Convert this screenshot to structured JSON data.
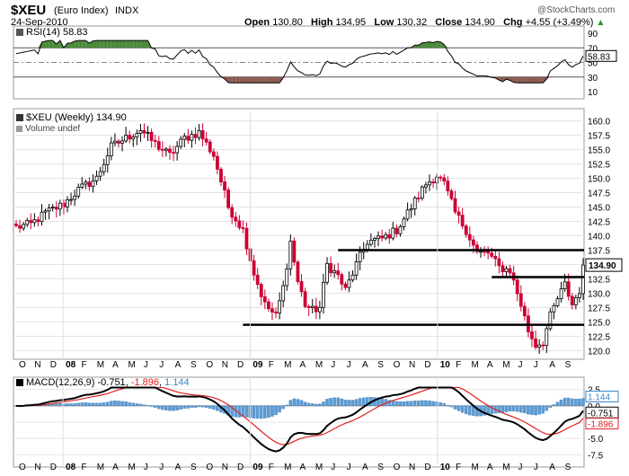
{
  "header": {
    "symbol": "$XEU",
    "name": "(Euro Index)",
    "exchange": "INDX",
    "date": "24-Sep-2010",
    "copyright": "@StockCharts.com",
    "open_label": "Open",
    "open": "130.80",
    "high_label": "High",
    "high": "134.95",
    "low_label": "Low",
    "low": "130.32",
    "close_label": "Close",
    "close": "134.90",
    "chg_label": "Chg",
    "chg": "+4.55 (+3.49%)",
    "chg_arrow": "▲"
  },
  "rsi": {
    "legend": "RSI(14) 58.83",
    "value_tag": "58.83",
    "ticks": [
      "90",
      "70",
      "50",
      "30",
      "10"
    ]
  },
  "price": {
    "legend": "$XEU (Weekly) 134.90",
    "volume_legend": "Volume undef",
    "value_tag": "134.90",
    "ticks": [
      "160.0",
      "157.5",
      "155.0",
      "152.5",
      "150.0",
      "147.5",
      "145.0",
      "142.5",
      "140.0",
      "137.5",
      "135.0",
      "132.5",
      "130.0",
      "127.5",
      "125.0",
      "122.5",
      "120.0"
    ]
  },
  "macd": {
    "legend_prefix": "MACD(12,26,9)",
    "macd_value": "-0.751",
    "signal_value": "-1.896",
    "hist_value": "1.144",
    "ticks": [
      "2.5",
      "0.0",
      "-2.5",
      "-5.0",
      "-7.5"
    ],
    "tags": [
      "1.144",
      "-0.751",
      "-1.896"
    ]
  },
  "x_labels": [
    "O",
    "N",
    "D",
    "08",
    "F",
    "M",
    "A",
    "M",
    "J",
    "J",
    "A",
    "S",
    "O",
    "N",
    "D",
    "09",
    "F",
    "M",
    "A",
    "M",
    "J",
    "J",
    "A",
    "S",
    "O",
    "N",
    "D",
    "10",
    "F",
    "M",
    "A",
    "M",
    "J",
    "J",
    "A",
    "S"
  ],
  "colors": {
    "up": "#000000",
    "down": "#cc0033",
    "rsi_over": "#4a8a3a",
    "rsi_under": "#8a5a50",
    "hist": "#5b9bd5",
    "signal": "#e02020"
  },
  "chart_data": [
    {
      "type": "candlestick",
      "title": "$XEU (Weekly)",
      "ylim": [
        118.5,
        161.5
      ],
      "weeks": 156,
      "start": "Oct 2007",
      "end": "24-Sep-2010",
      "anchors": [
        {
          "w": 0,
          "v": 141.5
        },
        {
          "w": 4,
          "v": 142.0
        },
        {
          "w": 8,
          "v": 144.0
        },
        {
          "w": 13,
          "v": 145.5
        },
        {
          "w": 17,
          "v": 148.0
        },
        {
          "w": 22,
          "v": 150.0
        },
        {
          "w": 26,
          "v": 155.5
        },
        {
          "w": 30,
          "v": 157.0
        },
        {
          "w": 34,
          "v": 158.5
        },
        {
          "w": 38,
          "v": 156.0
        },
        {
          "w": 42,
          "v": 154.0
        },
        {
          "w": 46,
          "v": 157.0
        },
        {
          "w": 50,
          "v": 158.0
        },
        {
          "w": 54,
          "v": 154.0
        },
        {
          "w": 58,
          "v": 145.0
        },
        {
          "w": 62,
          "v": 141.0
        },
        {
          "w": 65,
          "v": 133.5
        },
        {
          "w": 68,
          "v": 128.0
        },
        {
          "w": 71,
          "v": 126.0
        },
        {
          "w": 73,
          "v": 131.0
        },
        {
          "w": 75,
          "v": 139.0
        },
        {
          "w": 77,
          "v": 132.0
        },
        {
          "w": 79,
          "v": 128.0
        },
        {
          "w": 81,
          "v": 127.0
        },
        {
          "w": 83,
          "v": 127.5
        },
        {
          "w": 85,
          "v": 135.0
        },
        {
          "w": 88,
          "v": 133.0
        },
        {
          "w": 90,
          "v": 130.5
        },
        {
          "w": 93,
          "v": 135.0
        },
        {
          "w": 96,
          "v": 139.0
        },
        {
          "w": 100,
          "v": 139.5
        },
        {
          "w": 104,
          "v": 141.0
        },
        {
          "w": 108,
          "v": 145.0
        },
        {
          "w": 112,
          "v": 149.0
        },
        {
          "w": 115,
          "v": 150.5
        },
        {
          "w": 117,
          "v": 149.0
        },
        {
          "w": 120,
          "v": 144.0
        },
        {
          "w": 123,
          "v": 141.0
        },
        {
          "w": 126,
          "v": 137.0
        },
        {
          "w": 129,
          "v": 137.0
        },
        {
          "w": 132,
          "v": 134.5
        },
        {
          "w": 135,
          "v": 134.0
        },
        {
          "w": 138,
          "v": 128.0
        },
        {
          "w": 140,
          "v": 123.5
        },
        {
          "w": 142,
          "v": 121.0
        },
        {
          "w": 144,
          "v": 121.5
        },
        {
          "w": 146,
          "v": 126.0
        },
        {
          "w": 148,
          "v": 129.0
        },
        {
          "w": 150,
          "v": 131.5
        },
        {
          "w": 152,
          "v": 128.0
        },
        {
          "w": 154,
          "v": 130.5
        },
        {
          "w": 155,
          "v": 134.9
        }
      ],
      "horizontal_lines": [
        {
          "from_w": 88,
          "to_w": 156,
          "v": 137.5
        },
        {
          "from_w": 130,
          "to_w": 156,
          "v": 132.8
        },
        {
          "from_w": 62,
          "to_w": 156,
          "v": 124.5
        }
      ],
      "last_close": 134.9
    },
    {
      "type": "line",
      "title": "RSI(14)",
      "ylim": [
        10,
        90
      ],
      "reference_lines": [
        70,
        50,
        30
      ],
      "last": 58.83
    },
    {
      "type": "line+bar",
      "title": "MACD(12,26,9)",
      "ylim": [
        -8,
        3
      ],
      "series": [
        {
          "name": "MACD",
          "last": -0.751
        },
        {
          "name": "Signal",
          "last": -1.896
        },
        {
          "name": "Histogram",
          "last": 1.144
        }
      ]
    }
  ]
}
